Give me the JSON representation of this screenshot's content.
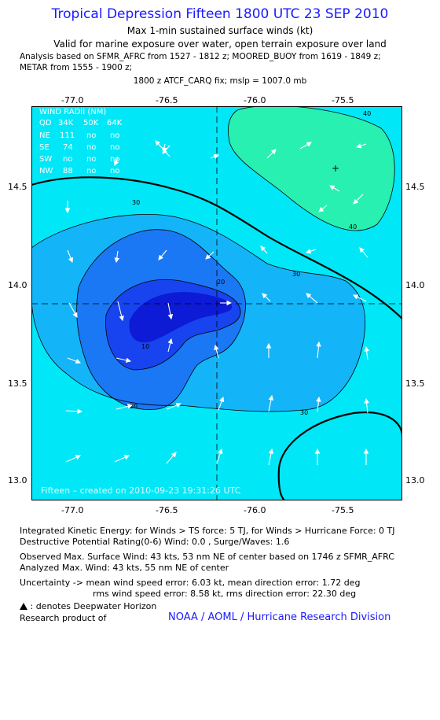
{
  "title": "Tropical Depression Fifteen 1800 UTC 23 SEP 2010",
  "subtitle1": "Max 1-min sustained surface winds (kt)",
  "subtitle2": "Valid for marine exposure over water, open terrain exposure over land",
  "analysis_line1": "Analysis based on SFMR_AFRC from 1527 - 1812 z; MOORED_BUOY from 1619 - 1849 z;",
  "analysis_line2": "METAR from 1555 - 1900 z;",
  "fix_line": "1800 z ATCF_CARQ fix; mslp = 1007.0 mb",
  "map": {
    "lon_ticks": [
      "-77.0",
      "-76.5",
      "-76.0",
      "-75.5"
    ],
    "lat_ticks": [
      "14.5",
      "14.0",
      "13.5",
      "13.0"
    ],
    "wind_radii": {
      "header": "WIND RADII (NM)",
      "columns": [
        "QD",
        "34K",
        "50K",
        "64K"
      ],
      "rows": [
        [
          "NE",
          "111",
          "no",
          "no"
        ],
        [
          "SE",
          "74",
          "no",
          "no"
        ],
        [
          "SW",
          "no",
          "no",
          "no"
        ],
        [
          "NW",
          "88",
          "no",
          "no"
        ]
      ]
    },
    "contour_labels": [
      "10",
      "20",
      "30",
      "30",
      "20",
      "30",
      "40",
      "40"
    ],
    "credit": "Fifteen  –  created on 2010-09-23  19:31:26 UTC",
    "colors": {
      "c40": "#28f0b0",
      "c30": "#00e8f8",
      "c20": "#14b4f8",
      "c10": "#1a78f5",
      "c0": "#1744ee",
      "cmax": "#0d1ad6"
    }
  },
  "footer": {
    "ike": "Integrated Kinetic Energy:  for Winds > TS force: 5 TJ,  for Winds > Hurricane Force: 0 TJ",
    "dpr": "Destructive Potential Rating(0-6)   Wind: 0.0 , Surge/Waves: 1.6",
    "observed": "Observed Max. Surface Wind: 43 kts, 53 nm NE of center based on 1746 z SFMR_AFRC",
    "analyzed": "Analyzed Max. Wind: 43 kts, 55 nm NE of center",
    "uncert1": "Uncertainty -> mean wind speed error: 6.03 kt,   mean direction error: 1.72 deg",
    "uncert2": "rms wind speed error: 8.58 kt,   rms direction error: 22.30 deg",
    "deepwater": ": denotes Deepwater Horizon",
    "research": "Research product of",
    "org": "NOAA / AOML / Hurricane Research Division"
  }
}
